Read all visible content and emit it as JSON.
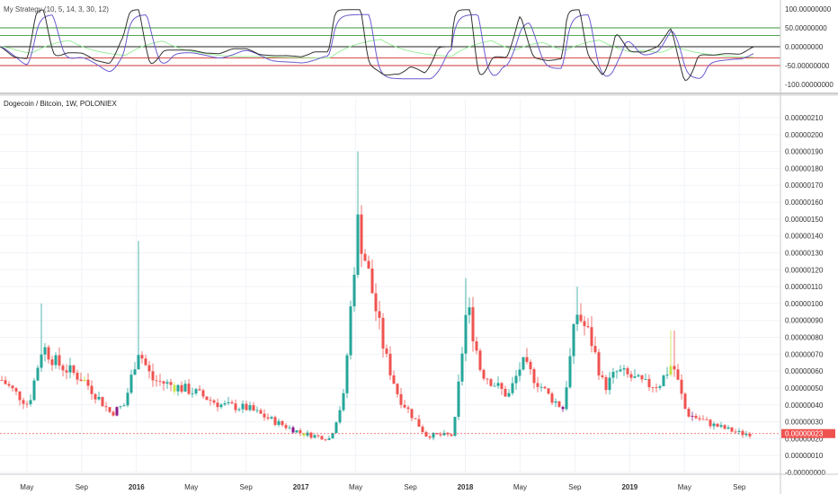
{
  "indicator": {
    "title": "My Strategy (10, 5, 14, 3, 30, 12)",
    "y_labels": [
      "100.00000000",
      "50.00000000",
      "0.00000000",
      "-50.00000000",
      "-100.00000000"
    ],
    "y_values": [
      100,
      50,
      0,
      -50,
      -100
    ],
    "levels": [
      {
        "value": 50,
        "color": "#3a9a3a"
      },
      {
        "value": 30,
        "color": "#3a9a3a"
      },
      {
        "value": 0,
        "color": "#222222"
      },
      {
        "value": -30,
        "color": "#d03030"
      },
      {
        "value": -50,
        "color": "#d03030"
      }
    ],
    "series_colors": {
      "fast": "#333333",
      "slow": "#6a5acd",
      "signal": "#90ee90"
    }
  },
  "main": {
    "title": "Dogecoin / Bitcoin, 1W, POLONIEX",
    "last_price_label": "0.00000023",
    "last_price": 23,
    "y_labels": [
      "0.00000210",
      "0.00000200",
      "0.00000190",
      "0.00000180",
      "0.00000170",
      "0.00000160",
      "0.00000150",
      "0.00000140",
      "0.00000130",
      "0.00000120",
      "0.00000110",
      "0.00000100",
      "0.00000090",
      "0.00000080",
      "0.00000070",
      "0.00000060",
      "0.00000050",
      "0.00000040",
      "0.00000030",
      "0.00000020",
      "0.00000010",
      "-0.00000000"
    ],
    "y_values": [
      210,
      200,
      190,
      180,
      170,
      160,
      150,
      140,
      130,
      120,
      110,
      100,
      90,
      80,
      70,
      60,
      50,
      40,
      30,
      20,
      10,
      0
    ],
    "x_labels": [
      {
        "text": "May",
        "bold": false
      },
      {
        "text": "Sep",
        "bold": false
      },
      {
        "text": "2016",
        "bold": true
      },
      {
        "text": "May",
        "bold": false
      },
      {
        "text": "Sep",
        "bold": false
      },
      {
        "text": "2017",
        "bold": true
      },
      {
        "text": "May",
        "bold": false
      },
      {
        "text": "Sep",
        "bold": false
      },
      {
        "text": "2018",
        "bold": true
      },
      {
        "text": "May",
        "bold": false
      },
      {
        "text": "Sep",
        "bold": false
      },
      {
        "text": "2019",
        "bold": true
      },
      {
        "text": "May",
        "bold": false
      },
      {
        "text": "Sep",
        "bold": false
      }
    ],
    "colors": {
      "up": "#26a69a",
      "down": "#ef5350",
      "buy_signal": "#c8e44a",
      "sell_signal": "#8b1a8b",
      "last_price": "#ef5350"
    }
  },
  "chart_data": {
    "type": "candlestick",
    "unit": "satoshi (1e-8 BTC)",
    "x_range": [
      "2015-03",
      "2019-09"
    ],
    "ylim": [
      0,
      210
    ],
    "approx_weekly_close": [
      {
        "date": "2015-03",
        "close": 55
      },
      {
        "date": "2015-05",
        "close": 40
      },
      {
        "date": "2015-06",
        "close": 75
      },
      {
        "date": "2015-07",
        "close": 65
      },
      {
        "date": "2015-09",
        "close": 55
      },
      {
        "date": "2015-11",
        "close": 35
      },
      {
        "date": "2015-12",
        "close": 40
      },
      {
        "date": "2016-01",
        "close": 73
      },
      {
        "date": "2016-02",
        "close": 55
      },
      {
        "date": "2016-05",
        "close": 48
      },
      {
        "date": "2016-07",
        "close": 40
      },
      {
        "date": "2016-09",
        "close": 38
      },
      {
        "date": "2016-11",
        "close": 30
      },
      {
        "date": "2017-01",
        "close": 23
      },
      {
        "date": "2017-03",
        "close": 20
      },
      {
        "date": "2017-04",
        "close": 45
      },
      {
        "date": "2017-05",
        "close": 148
      },
      {
        "date": "2017-06",
        "close": 110
      },
      {
        "date": "2017-07",
        "close": 70
      },
      {
        "date": "2017-08",
        "close": 45
      },
      {
        "date": "2017-10",
        "close": 22
      },
      {
        "date": "2017-12",
        "close": 22
      },
      {
        "date": "2018-01",
        "close": 100
      },
      {
        "date": "2018-02",
        "close": 60
      },
      {
        "date": "2018-04",
        "close": 45
      },
      {
        "date": "2018-05",
        "close": 65
      },
      {
        "date": "2018-07",
        "close": 45
      },
      {
        "date": "2018-08",
        "close": 38
      },
      {
        "date": "2018-09",
        "close": 95
      },
      {
        "date": "2018-10",
        "close": 80
      },
      {
        "date": "2018-11",
        "close": 50
      },
      {
        "date": "2018-12",
        "close": 60
      },
      {
        "date": "2019-02",
        "close": 52
      },
      {
        "date": "2019-03",
        "close": 52
      },
      {
        "date": "2019-04",
        "close": 65
      },
      {
        "date": "2019-05",
        "close": 35
      },
      {
        "date": "2019-07",
        "close": 28
      },
      {
        "date": "2019-09",
        "close": 23
      }
    ],
    "notable_highs": [
      {
        "date": "2015-06",
        "high": 100
      },
      {
        "date": "2016-01",
        "high": 137
      },
      {
        "date": "2017-05",
        "high": 190
      },
      {
        "date": "2018-01",
        "high": 115
      },
      {
        "date": "2018-09",
        "high": 110
      },
      {
        "date": "2019-04",
        "high": 84
      }
    ]
  }
}
